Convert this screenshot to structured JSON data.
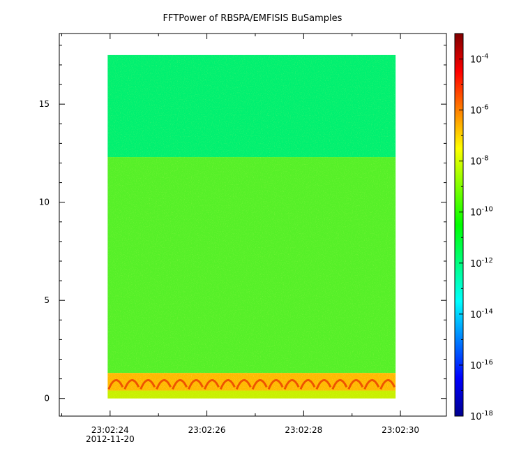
{
  "chart_data": {
    "type": "heatmap",
    "title": "FFTPower of RBSPA/EMFISIS  BuSamples",
    "xlabel": "",
    "ylabel": "",
    "x": {
      "range": [
        "23:02:22.950",
        "23:02:30.950"
      ],
      "data_extent": [
        "23:02:23.950",
        "23:02:29.900"
      ],
      "ticks": [
        "23:02:24",
        "23:02:26",
        "23:02:28",
        "23:02:30"
      ],
      "tick_seconds": [
        24,
        26,
        28,
        30
      ],
      "minor_tick_seconds": [
        23,
        25,
        27,
        29
      ],
      "date_label": "2012-11-20"
    },
    "y": {
      "range": [
        -0.9,
        18.6
      ],
      "data_extent": [
        0,
        17.5
      ],
      "ticks": [
        "0",
        "5",
        "10",
        "15"
      ],
      "tick_values": [
        0,
        5,
        10,
        15
      ]
    },
    "colorbar": {
      "scale": "log",
      "range": [
        1e-18,
        0.001
      ],
      "colormap": [
        "#00008f",
        "#0000ff",
        "#0080ff",
        "#00ffff",
        "#00ff80",
        "#00ff00",
        "#80ff00",
        "#ffff00",
        "#ff8000",
        "#ff0000",
        "#800000"
      ],
      "ticks": [
        {
          "base": "10",
          "exp": "-4",
          "value": -4
        },
        {
          "base": "10",
          "exp": "-6",
          "value": -6
        },
        {
          "base": "10",
          "exp": "-8",
          "value": -8
        },
        {
          "base": "10",
          "exp": "-10",
          "value": -10
        },
        {
          "base": "10",
          "exp": "-12",
          "value": -12
        },
        {
          "base": "10",
          "exp": "-14",
          "value": -14
        },
        {
          "base": "10",
          "exp": "-16",
          "value": -16
        },
        {
          "base": "10",
          "exp": "-18",
          "value": -18
        }
      ]
    },
    "bands": [
      {
        "y_from": 12.3,
        "y_to": 17.5,
        "log10_power": -11.6,
        "color": "#00f070"
      },
      {
        "y_from": 1.3,
        "y_to": 12.3,
        "log10_power": -10.2,
        "color": "#55f028"
      },
      {
        "y_from": 0.4,
        "y_to": 1.3,
        "log10_power": -7.5,
        "color": "#ffb800"
      },
      {
        "y_from": 0,
        "y_to": 0.4,
        "log10_power": -9.2,
        "color": "#c8f000"
      }
    ],
    "grid": false
  }
}
